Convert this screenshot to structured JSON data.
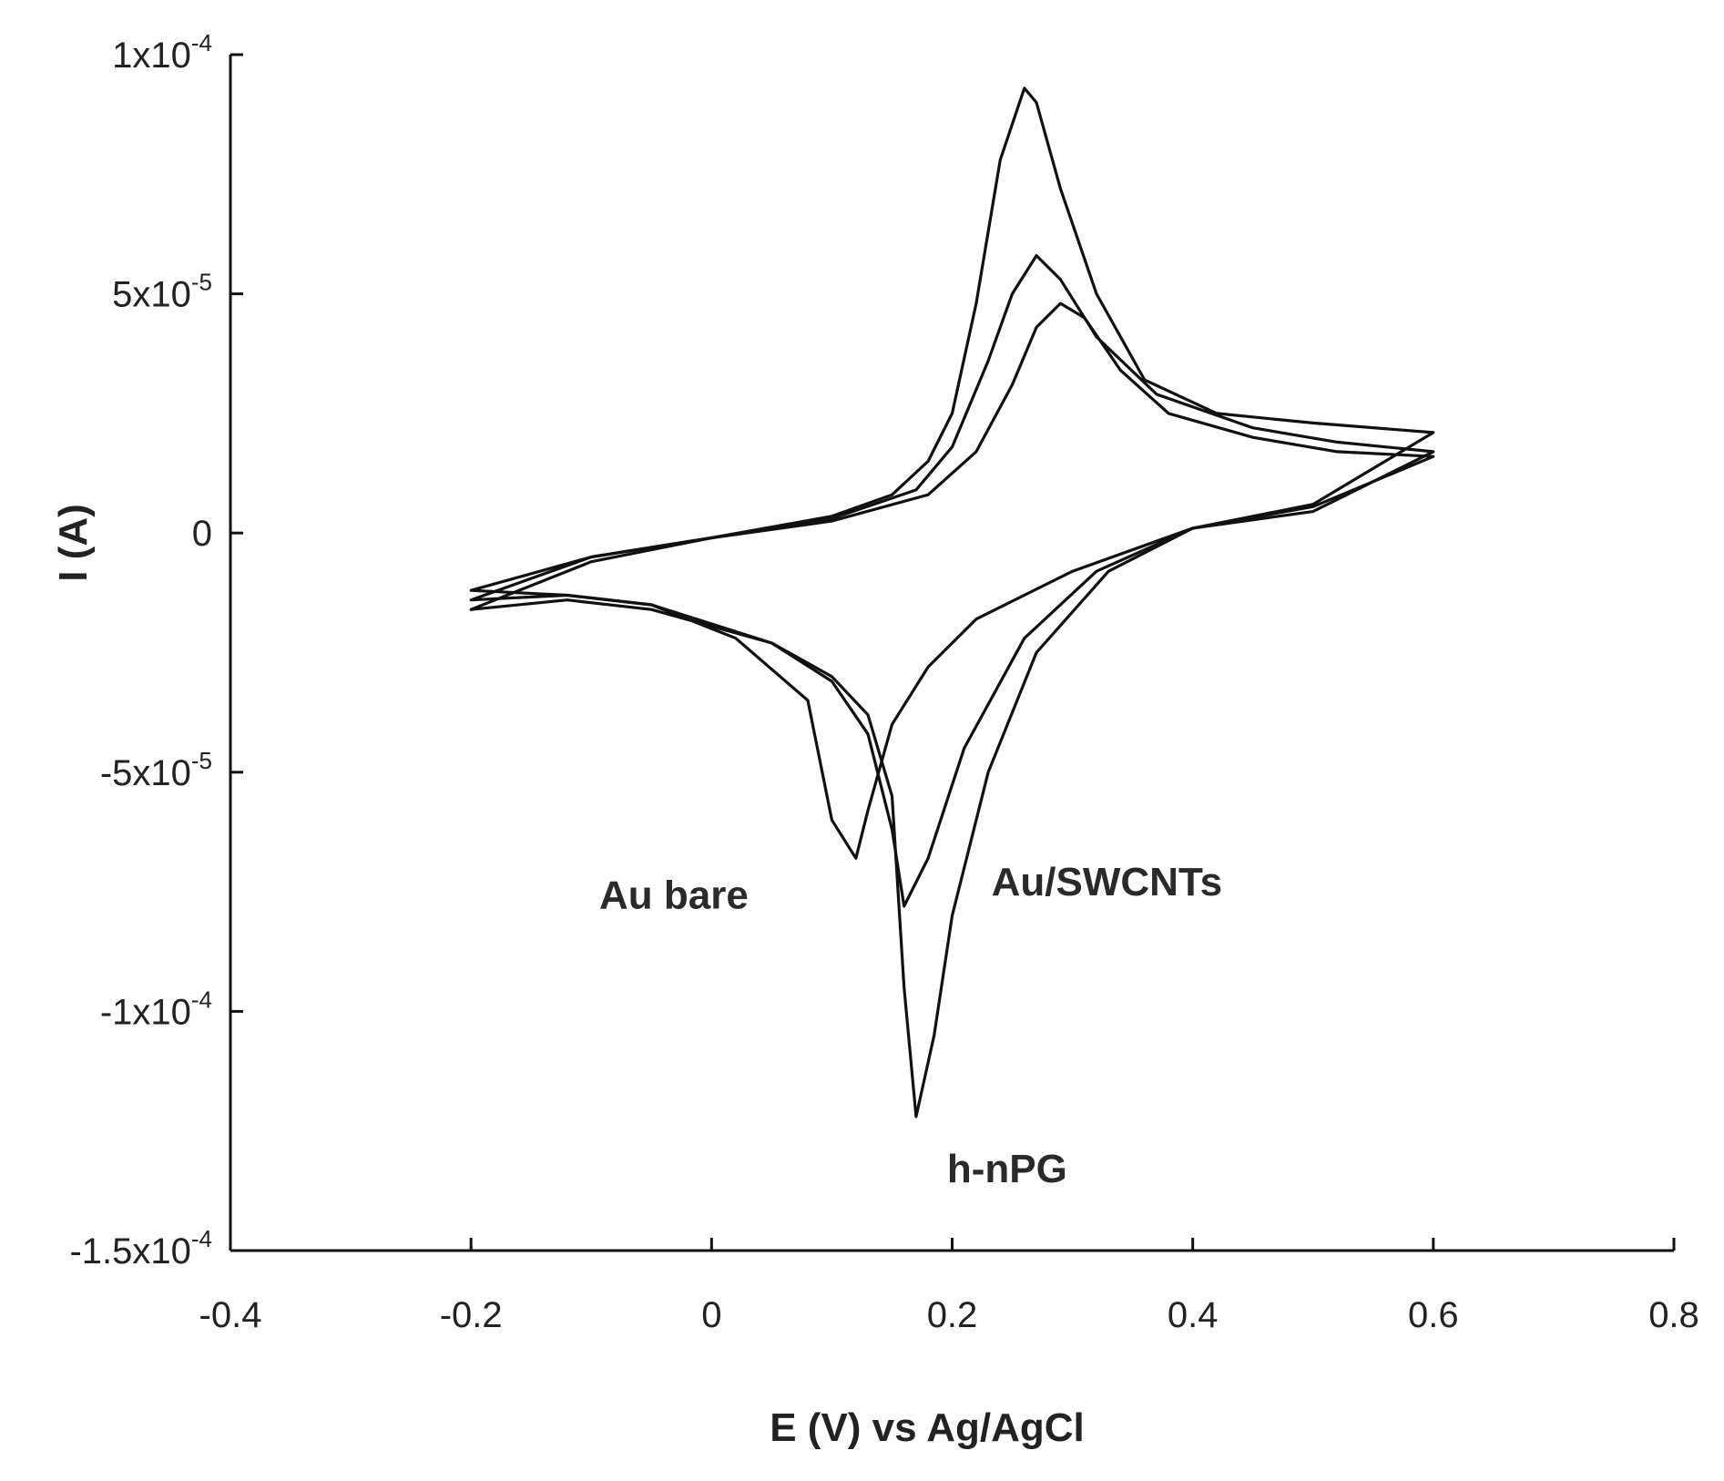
{
  "chart_data": {
    "type": "line",
    "title": "",
    "xlabel": "E (V) vs Ag/AgCl",
    "ylabel": "I (A)",
    "xlim": [
      -0.4,
      0.8
    ],
    "ylim": [
      -0.00015,
      0.0001
    ],
    "x_ticks": [
      {
        "value": -0.4,
        "label": "-0.4"
      },
      {
        "value": -0.2,
        "label": "-0.2"
      },
      {
        "value": 0,
        "label": "0"
      },
      {
        "value": 0.2,
        "label": "0.2"
      },
      {
        "value": 0.4,
        "label": "0.4"
      },
      {
        "value": 0.6,
        "label": "0.6"
      },
      {
        "value": 0.8,
        "label": "0.8"
      }
    ],
    "y_ticks": [
      {
        "value": 0.0001,
        "mant": "1x10",
        "exp": "-4"
      },
      {
        "value": 5e-05,
        "mant": "5x10",
        "exp": "-5"
      },
      {
        "value": 0,
        "mant": "0",
        "exp": ""
      },
      {
        "value": -5e-05,
        "mant": "-5x10",
        "exp": "-5"
      },
      {
        "value": -0.0001,
        "mant": "-1x10",
        "exp": "-4"
      },
      {
        "value": -0.00015,
        "mant": "-1.5x10",
        "exp": "-4"
      }
    ],
    "grid": false,
    "series": [
      {
        "label": "Au bare",
        "anodic_peak": {
          "x": 0.29,
          "y": 4.8e-05
        },
        "cathodic_peak": {
          "x": 0.12,
          "y": -6.8e-05
        },
        "forward": [
          [
            -0.2,
            -1.2e-05
          ],
          [
            -0.1,
            -5e-06
          ],
          [
            0.0,
            -1e-06
          ],
          [
            0.1,
            2.5e-06
          ],
          [
            0.18,
            8e-06
          ],
          [
            0.22,
            1.7e-05
          ],
          [
            0.25,
            3.1e-05
          ],
          [
            0.27,
            4.3e-05
          ],
          [
            0.29,
            4.8e-05
          ],
          [
            0.31,
            4.5e-05
          ],
          [
            0.34,
            3.4e-05
          ],
          [
            0.38,
            2.5e-05
          ],
          [
            0.45,
            2e-05
          ],
          [
            0.52,
            1.7e-05
          ],
          [
            0.6,
            1.6e-05
          ]
        ],
        "reverse": [
          [
            0.6,
            1.4e-05
          ],
          [
            0.5,
            5.5e-06
          ],
          [
            0.4,
            1e-06
          ],
          [
            0.3,
            -8e-06
          ],
          [
            0.22,
            -1.8e-05
          ],
          [
            0.18,
            -2.8e-05
          ],
          [
            0.15,
            -4e-05
          ],
          [
            0.13,
            -5.8e-05
          ],
          [
            0.12,
            -6.8e-05
          ],
          [
            0.1,
            -6e-05
          ],
          [
            0.08,
            -3.5e-05
          ],
          [
            0.02,
            -2.2e-05
          ],
          [
            -0.05,
            -1.5e-05
          ],
          [
            -0.12,
            -1.3e-05
          ],
          [
            -0.2,
            -1.2e-05
          ]
        ]
      },
      {
        "label": "Au/SWCNTs",
        "anodic_peak": {
          "x": 0.27,
          "y": 5.8e-05
        },
        "cathodic_peak": {
          "x": 0.16,
          "y": -7.8e-05
        },
        "forward": [
          [
            -0.2,
            -1.4e-05
          ],
          [
            -0.1,
            -5e-06
          ],
          [
            0.0,
            -1e-06
          ],
          [
            0.1,
            3e-06
          ],
          [
            0.17,
            9e-06
          ],
          [
            0.2,
            1.8e-05
          ],
          [
            0.23,
            3.6e-05
          ],
          [
            0.25,
            5e-05
          ],
          [
            0.27,
            5.8e-05
          ],
          [
            0.29,
            5.3e-05
          ],
          [
            0.32,
            4.1e-05
          ],
          [
            0.37,
            2.9e-05
          ],
          [
            0.45,
            2.2e-05
          ],
          [
            0.52,
            1.9e-05
          ],
          [
            0.6,
            1.7e-05
          ]
        ],
        "reverse": [
          [
            0.6,
            1.2e-05
          ],
          [
            0.5,
            4.5e-06
          ],
          [
            0.4,
            1e-06
          ],
          [
            0.32,
            -8e-06
          ],
          [
            0.26,
            -2.2e-05
          ],
          [
            0.21,
            -4.5e-05
          ],
          [
            0.18,
            -6.8e-05
          ],
          [
            0.16,
            -7.8e-05
          ],
          [
            0.15,
            -6.2e-05
          ],
          [
            0.13,
            -4.2e-05
          ],
          [
            0.1,
            -3.1e-05
          ],
          [
            0.05,
            -2.3e-05
          ],
          [
            -0.05,
            -1.5e-05
          ],
          [
            -0.12,
            -1.3e-05
          ],
          [
            -0.2,
            -1.4e-05
          ]
        ]
      },
      {
        "label": "h-nPG",
        "anodic_peak": {
          "x": 0.265,
          "y": 9.3e-05
        },
        "cathodic_peak": {
          "x": 0.17,
          "y": -0.000122
        },
        "forward": [
          [
            -0.2,
            -1.6e-05
          ],
          [
            -0.1,
            -6e-06
          ],
          [
            0.0,
            -1e-06
          ],
          [
            0.1,
            3.5e-06
          ],
          [
            0.15,
            8e-06
          ],
          [
            0.18,
            1.5e-05
          ],
          [
            0.2,
            2.5e-05
          ],
          [
            0.22,
            4.8e-05
          ],
          [
            0.24,
            7.8e-05
          ],
          [
            0.26,
            9.3e-05
          ],
          [
            0.27,
            9e-05
          ],
          [
            0.29,
            7.2e-05
          ],
          [
            0.32,
            5e-05
          ],
          [
            0.36,
            3.2e-05
          ],
          [
            0.42,
            2.5e-05
          ],
          [
            0.5,
            2.3e-05
          ],
          [
            0.6,
            2.1e-05
          ]
        ],
        "reverse": [
          [
            0.6,
            1.5e-05
          ],
          [
            0.5,
            6e-06
          ],
          [
            0.4,
            1e-06
          ],
          [
            0.33,
            -8e-06
          ],
          [
            0.27,
            -2.5e-05
          ],
          [
            0.23,
            -5e-05
          ],
          [
            0.2,
            -8e-05
          ],
          [
            0.185,
            -0.000105
          ],
          [
            0.17,
            -0.000122
          ],
          [
            0.16,
            -9.5e-05
          ],
          [
            0.15,
            -5.5e-05
          ],
          [
            0.13,
            -3.8e-05
          ],
          [
            0.1,
            -3e-05
          ],
          [
            0.05,
            -2.3e-05
          ],
          [
            -0.05,
            -1.6e-05
          ],
          [
            -0.12,
            -1.4e-05
          ],
          [
            -0.2,
            -1.6e-05
          ]
        ]
      }
    ]
  }
}
